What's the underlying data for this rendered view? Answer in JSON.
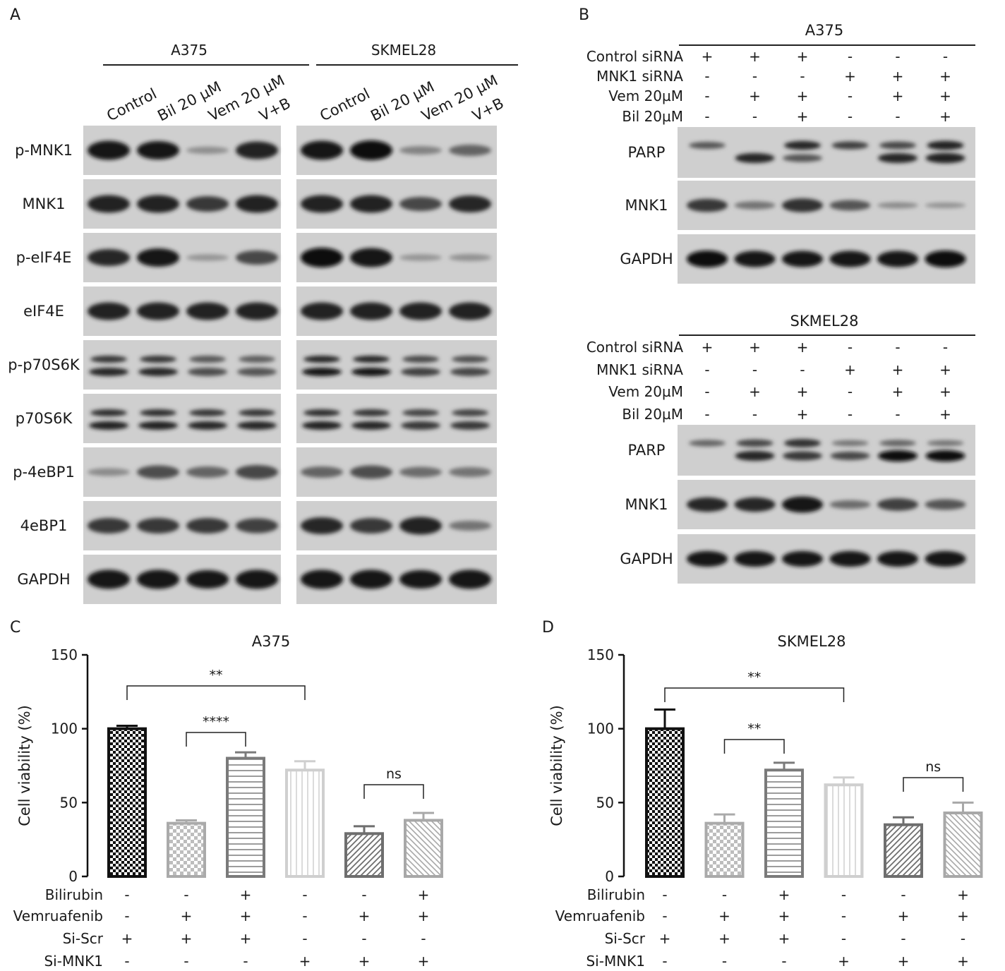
{
  "panel_letters": [
    "A",
    "B",
    "C",
    "D"
  ],
  "panel_a": {
    "groups": [
      {
        "title": "A375",
        "columns": [
          "Control",
          "Bil 20 µM",
          "Vem 20 µM",
          "V+B"
        ]
      },
      {
        "title": "SKMEL28",
        "columns": [
          "Control",
          "Bil 20 µM",
          "Vem 20 µM",
          "V+B"
        ]
      }
    ],
    "rows": [
      "p-MNK1",
      "MNK1",
      "p-eIF4E",
      "eIF4E",
      "p-p70S6K",
      "p70S6K",
      "p-4eBP1",
      "4eBP1",
      "GAPDH"
    ],
    "intensity": {
      "A375": [
        [
          0.95,
          0.9,
          0.12,
          0.85
        ],
        [
          0.85,
          0.85,
          0.7,
          0.85
        ],
        [
          0.8,
          0.9,
          0.08,
          0.6
        ],
        [
          0.85,
          0.85,
          0.85,
          0.85
        ],
        [
          0.8,
          0.8,
          0.55,
          0.5
        ],
        [
          0.85,
          0.85,
          0.8,
          0.8
        ],
        [
          0.15,
          0.55,
          0.4,
          0.6
        ],
        [
          0.7,
          0.7,
          0.7,
          0.65
        ],
        [
          0.95,
          0.95,
          0.9,
          0.95
        ]
      ],
      "SKMEL28": [
        [
          0.95,
          1.0,
          0.2,
          0.4
        ],
        [
          0.85,
          0.85,
          0.6,
          0.8
        ],
        [
          1.0,
          0.95,
          0.08,
          0.1
        ],
        [
          0.85,
          0.85,
          0.85,
          0.85
        ],
        [
          0.9,
          0.9,
          0.65,
          0.6
        ],
        [
          0.85,
          0.8,
          0.7,
          0.7
        ],
        [
          0.4,
          0.55,
          0.35,
          0.3
        ],
        [
          0.8,
          0.7,
          0.85,
          0.3
        ],
        [
          0.95,
          0.95,
          0.9,
          0.95
        ]
      ]
    }
  },
  "panel_b": {
    "blocks": [
      {
        "title": "A375",
        "conditions": [
          {
            "label": "Control siRNA",
            "signs": [
              "+",
              "+",
              "+",
              "-",
              "-",
              "-"
            ]
          },
          {
            "label": "MNK1 siRNA",
            "signs": [
              "-",
              "-",
              "-",
              "+",
              "+",
              "+"
            ]
          },
          {
            "label": "Vem 20µM",
            "signs": [
              "-",
              "+",
              "+",
              "-",
              "+",
              "+"
            ]
          },
          {
            "label": "Bil 20µM",
            "signs": [
              "-",
              "-",
              "+",
              "-",
              "-",
              "+"
            ]
          }
        ],
        "blots": [
          "PARP",
          "MNK1",
          "GAPDH"
        ],
        "intensity": {
          "PARP_upper": [
            0.5,
            0.0,
            0.8,
            0.65,
            0.6,
            0.85
          ],
          "PARP_lower": [
            0.0,
            0.8,
            0.5,
            0.0,
            0.8,
            0.85
          ],
          "MNK1": [
            0.7,
            0.3,
            0.75,
            0.5,
            0.15,
            0.1
          ],
          "GAPDH": [
            1.0,
            0.95,
            0.95,
            0.95,
            0.95,
            1.0
          ]
        }
      },
      {
        "title": "SKMEL28",
        "conditions": [
          {
            "label": "Control siRNA",
            "signs": [
              "+",
              "+",
              "+",
              "-",
              "-",
              "-"
            ]
          },
          {
            "label": "MNK1 siRNA",
            "signs": [
              "-",
              "-",
              "-",
              "+",
              "+",
              "+"
            ]
          },
          {
            "label": "Vem 20µM",
            "signs": [
              "-",
              "+",
              "+",
              "-",
              "+",
              "+"
            ]
          },
          {
            "label": "Bil 20µM",
            "signs": [
              "-",
              "-",
              "+",
              "-",
              "-",
              "+"
            ]
          }
        ],
        "blots": [
          "PARP",
          "MNK1",
          "GAPDH"
        ],
        "intensity": {
          "PARP_upper": [
            0.4,
            0.6,
            0.75,
            0.3,
            0.4,
            0.3
          ],
          "PARP_lower": [
            0.0,
            0.8,
            0.7,
            0.6,
            1.0,
            1.0
          ],
          "MNK1": [
            0.8,
            0.8,
            0.95,
            0.35,
            0.65,
            0.5
          ],
          "GAPDH": [
            0.9,
            0.9,
            0.9,
            0.9,
            0.9,
            0.9
          ]
        }
      }
    ]
  },
  "chart_data": [
    {
      "type": "bar",
      "title": "A375",
      "ylabel": "Cell viability (%)",
      "ylim": [
        0,
        150
      ],
      "yticks": [
        0,
        50,
        100,
        150
      ],
      "values": [
        100,
        36,
        80,
        72,
        29,
        38
      ],
      "errors": [
        2,
        2,
        4,
        6,
        5,
        5
      ],
      "patterns": [
        "checker-dark",
        "checker-light",
        "horizontal",
        "vertical",
        "diagonal-dark",
        "diagonal-light"
      ],
      "colors": [
        "#111111",
        "#aaaaaa",
        "#7a7a7a",
        "#cfcfcf",
        "#6e6e6e",
        "#a8a8a8"
      ],
      "conditions": [
        {
          "label": "Bilirubin",
          "signs": [
            "-",
            "-",
            "+",
            "-",
            "-",
            "+"
          ]
        },
        {
          "label": "Vemruafenib",
          "signs": [
            "-",
            "+",
            "+",
            "-",
            "+",
            "+"
          ]
        },
        {
          "label": "Si-Scr",
          "signs": [
            "+",
            "+",
            "+",
            "-",
            "-",
            "-"
          ]
        },
        {
          "label": "Si-MNK1",
          "signs": [
            "-",
            "-",
            "-",
            "+",
            "+",
            "+"
          ]
        }
      ],
      "significance": [
        {
          "from": 0,
          "to": 3,
          "label": "**"
        },
        {
          "from": 1,
          "to": 2,
          "label": "****"
        },
        {
          "from": 4,
          "to": 5,
          "label": "ns"
        }
      ]
    },
    {
      "type": "bar",
      "title": "SKMEL28",
      "ylabel": "Cell viability (%)",
      "ylim": [
        0,
        150
      ],
      "yticks": [
        0,
        50,
        100,
        150
      ],
      "values": [
        100,
        36,
        72,
        62,
        35,
        43
      ],
      "errors": [
        13,
        6,
        5,
        5,
        5,
        7
      ],
      "patterns": [
        "checker-dark",
        "checker-light",
        "horizontal",
        "vertical",
        "diagonal-dark",
        "diagonal-light"
      ],
      "colors": [
        "#111111",
        "#aaaaaa",
        "#7a7a7a",
        "#cfcfcf",
        "#6e6e6e",
        "#a8a8a8"
      ],
      "conditions": [
        {
          "label": "Bilirubin",
          "signs": [
            "-",
            "-",
            "+",
            "-",
            "-",
            "+"
          ]
        },
        {
          "label": "Vemruafenib",
          "signs": [
            "-",
            "+",
            "+",
            "-",
            "+",
            "+"
          ]
        },
        {
          "label": "Si-Scr",
          "signs": [
            "+",
            "+",
            "+",
            "-",
            "-",
            "-"
          ]
        },
        {
          "label": "Si-MNK1",
          "signs": [
            "-",
            "-",
            "-",
            "+",
            "+",
            "+"
          ]
        }
      ],
      "significance": [
        {
          "from": 0,
          "to": 3,
          "label": "**"
        },
        {
          "from": 1,
          "to": 2,
          "label": "**"
        },
        {
          "from": 4,
          "to": 5,
          "label": "ns"
        }
      ]
    }
  ]
}
